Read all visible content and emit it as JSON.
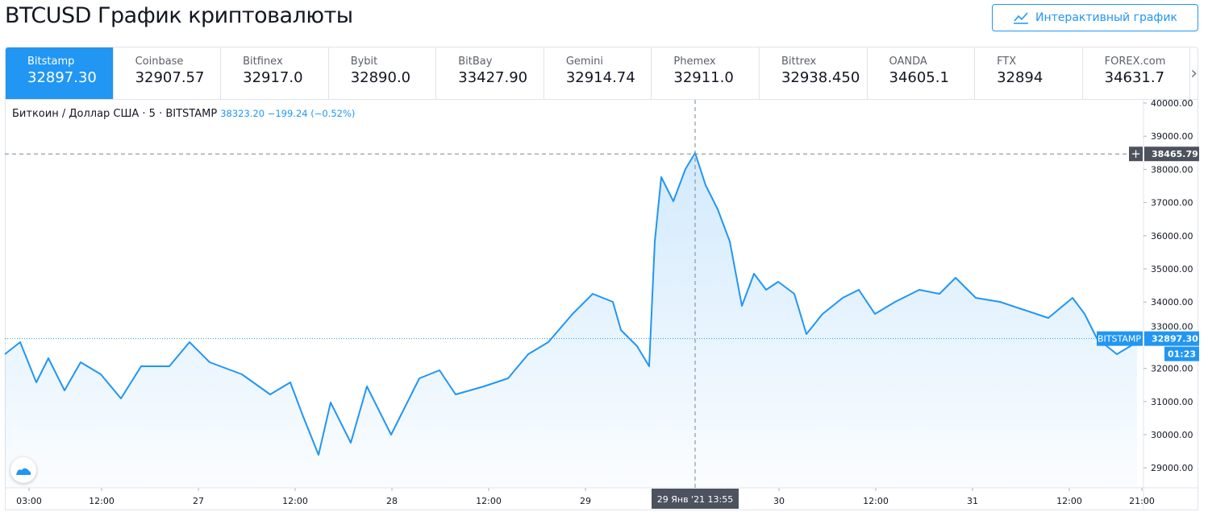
{
  "title": "BTCUSD График криптовалюты",
  "interactive_button": "Интерактивный график",
  "tabs": [
    {
      "name": "Bitstamp",
      "price": "32897.30",
      "active": true
    },
    {
      "name": "Coinbase",
      "price": "32907.57"
    },
    {
      "name": "Bitfinex",
      "price": "32917.0"
    },
    {
      "name": "Bybit",
      "price": "32890.0"
    },
    {
      "name": "BitBay",
      "price": "33427.90"
    },
    {
      "name": "Gemini",
      "price": "32914.74"
    },
    {
      "name": "Phemex",
      "price": "32911.0"
    },
    {
      "name": "Bittrex",
      "price": "32938.450"
    },
    {
      "name": "OANDA",
      "price": "34605.1"
    },
    {
      "name": "FTX",
      "price": "32894"
    },
    {
      "name": "FOREX.com",
      "price": "34631.7"
    }
  ],
  "legend": {
    "symbol": "Биткоин / Доллар США · 5 · BITSTAMP",
    "values": "38323.20 −199.24 (−0.52%)"
  },
  "chart_data": {
    "type": "area",
    "title": "Биткоин / Доллар США · 5 · BITSTAMP",
    "x_unit": "hours since 26 Jan 00:00",
    "x": [
      0,
      1.9,
      3.9,
      5.4,
      7.4,
      9.4,
      11.9,
      14.4,
      16.9,
      20.4,
      22.9,
      25.4,
      29.4,
      32.9,
      35.4,
      36.9,
      38.9,
      40.4,
      42.9,
      44.9,
      47.9,
      49.4,
      51.4,
      53.9,
      55.9,
      59.4,
      62.4,
      64.9,
      67.4,
      70.4,
      72.9,
      75.4,
      76.4,
      78.4,
      79.9,
      80.6,
      81.4,
      82.9,
      84.4,
      85.6,
      86.9,
      88.4,
      89.9,
      91.4,
      92.9,
      94.4,
      95.9,
      97.9,
      99.4,
      101.4,
      103.9,
      105.9,
      107.9,
      110.4,
      113.4,
      115.9,
      117.9,
      120.4,
      123.4,
      126.4,
      129.4,
      132.4,
      133.9,
      135.4,
      137.9,
      140.4
    ],
    "y": [
      32428,
      32792,
      31578,
      32306,
      31336,
      32185,
      31821,
      31093,
      32064,
      32064,
      32792,
      32185,
      31821,
      31214,
      31578,
      30608,
      29394,
      30972,
      29758,
      31457,
      30001,
      30729,
      31700,
      31942,
      31214,
      31457,
      31700,
      32428,
      32792,
      33641,
      34248,
      34005,
      33156,
      32670,
      32064,
      35826,
      37767,
      37039,
      38010,
      38495,
      37524,
      36796,
      35826,
      33884,
      34855,
      34369,
      34612,
      34248,
      33035,
      33641,
      34127,
      34369,
      33641,
      34005,
      34369,
      34248,
      34733,
      34127,
      34005,
      33763,
      33520,
      34127,
      33641,
      32913,
      32428,
      32792
    ],
    "ylim": [
      28500,
      40200
    ],
    "y_ticks": [
      "40000.00",
      "39000.00",
      "38000.00",
      "37000.00",
      "36000.00",
      "35000.00",
      "34000.00",
      "33000.00",
      "32000.00",
      "31000.00",
      "30000.00",
      "29000.00"
    ],
    "x_ticks": [
      {
        "h": 3,
        "label": "03:00"
      },
      {
        "h": 12,
        "label": "12:00"
      },
      {
        "h": 24,
        "label": "27"
      },
      {
        "h": 36,
        "label": "12:00"
      },
      {
        "h": 48,
        "label": "28"
      },
      {
        "h": 60,
        "label": "12:00"
      },
      {
        "h": 72,
        "label": "29"
      },
      {
        "h": 96,
        "label": "30"
      },
      {
        "h": 108,
        "label": "12:00"
      },
      {
        "h": 120,
        "label": "31"
      },
      {
        "h": 132,
        "label": "12:00"
      },
      {
        "h": 141,
        "label": "21:00"
      }
    ],
    "last_price": 32897.3,
    "last_label": "BITSTAMP",
    "last_price_text": "32897.30",
    "countdown": "01:23",
    "crosshair": {
      "h": 85.6,
      "price": 38465.79,
      "price_text": "38465.79",
      "time_text": "29 Янв '21   13:55"
    },
    "line_color": "#2196f3"
  }
}
